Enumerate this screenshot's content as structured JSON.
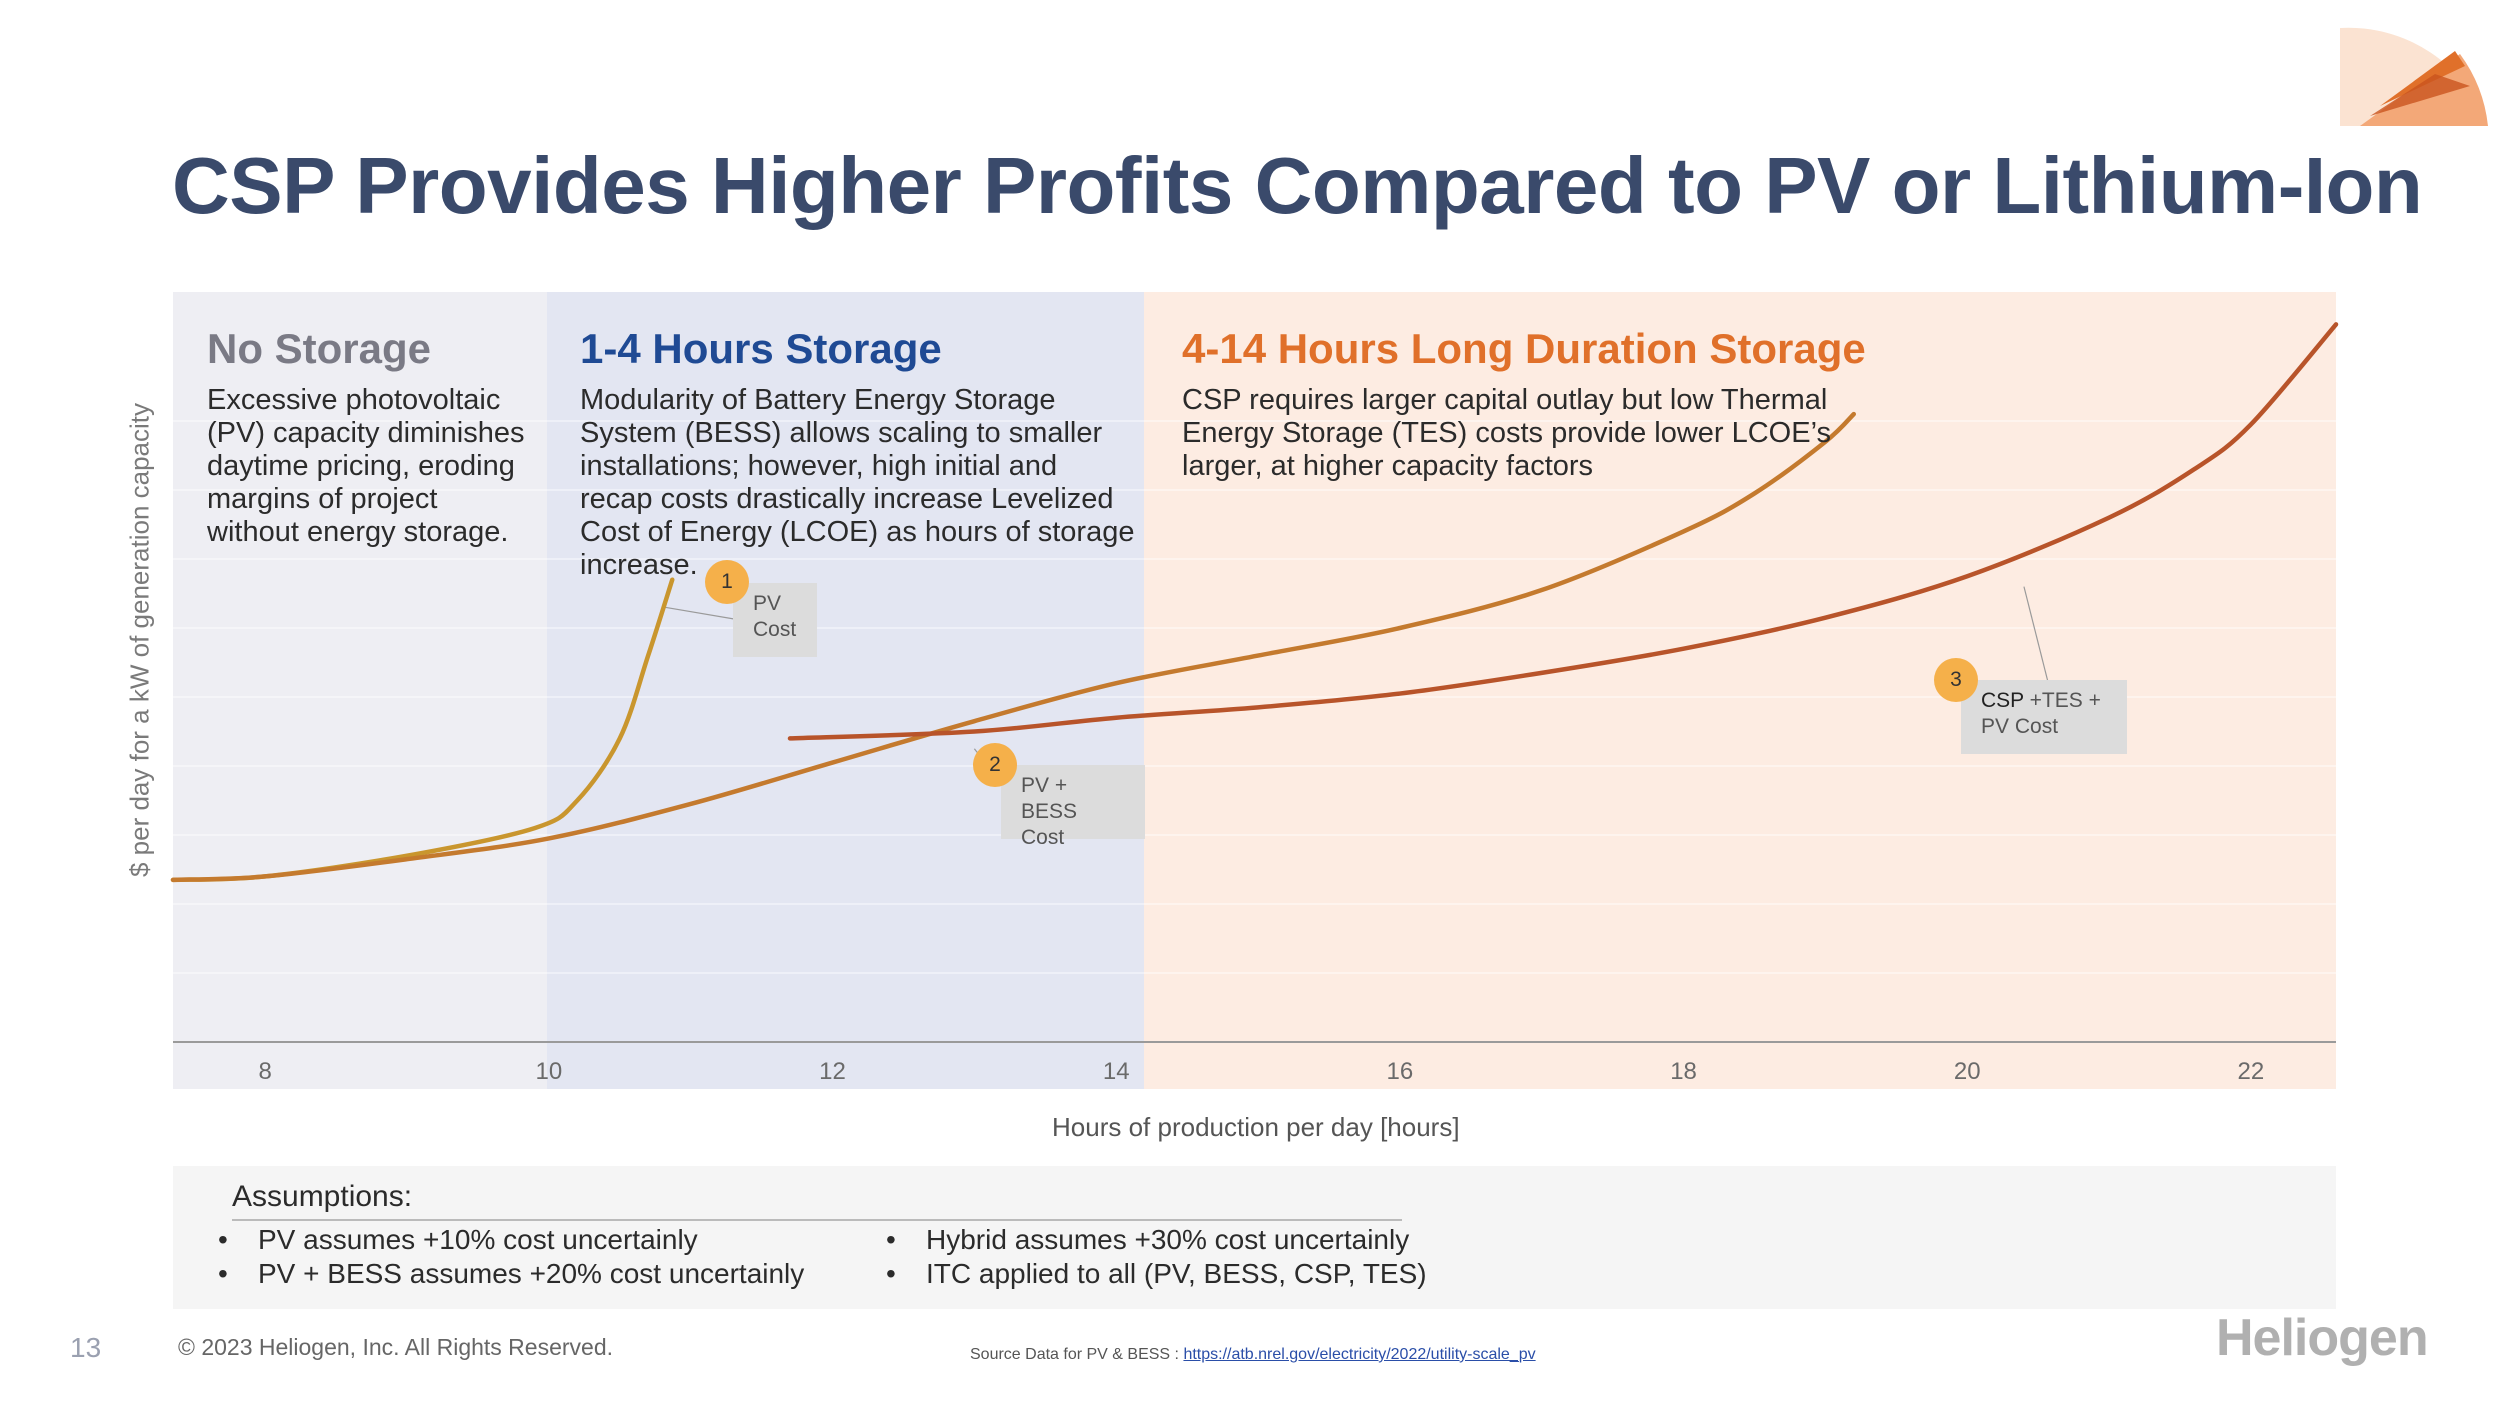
{
  "title": "CSP Provides Higher Profits Compared to PV or Lithium-Ion",
  "zones": [
    {
      "heading": "No Storage",
      "color": "#7a7a85",
      "text": "Excessive photovoltaic (PV) capacity diminishes daytime pricing, eroding margins of project without energy storage."
    },
    {
      "heading": "1-4 Hours Storage",
      "color": "#1f4a94",
      "text": "Modularity of Battery Energy Storage System (BESS) allows scaling to smaller installations; however, high initial and recap costs drastically increase Levelized Cost of Energy (LCOE) as hours of storage increase."
    },
    {
      "heading": "4-14 Hours Long Duration Storage",
      "color": "#e0702a",
      "text": "CSP requires larger capital outlay but low Thermal Energy Storage (TES) costs provide lower LCOE’s larger, at higher capacity factors"
    }
  ],
  "chart_data": {
    "type": "line",
    "title": "",
    "xlabel": "Hours of production per day [hours]",
    "ylabel": "$ per day for a kW of generation capacity",
    "xlim": [
      7.35,
      22.6
    ],
    "ylim": [
      0,
      10
    ],
    "x_ticks": [
      8,
      10,
      12,
      14,
      16,
      18,
      20,
      22
    ],
    "grid": true,
    "series": [
      {
        "name": "PV Cost",
        "color": "#c9962e",
        "x": [
          7.35,
          8.0,
          9.0,
          9.9,
          10.2,
          10.5,
          10.7,
          10.87
        ],
        "y": [
          2.35,
          2.4,
          2.7,
          3.1,
          3.5,
          4.4,
          5.6,
          6.7
        ]
      },
      {
        "name": "PV + BESS Cost",
        "color": "#c47a2e",
        "x": [
          7.35,
          8.0,
          9.0,
          10.0,
          11.0,
          12.0,
          13.0,
          14.0,
          15.0,
          16.0,
          17.0,
          18.0,
          18.5,
          19.0,
          19.2
        ],
        "y": [
          2.35,
          2.4,
          2.65,
          2.95,
          3.45,
          4.05,
          4.65,
          5.2,
          5.6,
          6.0,
          6.55,
          7.4,
          7.95,
          8.7,
          9.1
        ]
      },
      {
        "name": "CSP +TES + PV Cost",
        "color": "#b8542a",
        "x": [
          11.7,
          13.0,
          14.0,
          15.0,
          16.0,
          17.0,
          18.0,
          19.0,
          20.0,
          21.0,
          21.6,
          22.0,
          22.6
        ],
        "y": [
          4.4,
          4.5,
          4.7,
          4.85,
          5.05,
          5.35,
          5.7,
          6.15,
          6.75,
          7.6,
          8.3,
          8.95,
          10.4
        ]
      }
    ],
    "callouts": [
      {
        "num": "1",
        "lines": [
          "PV",
          "Cost"
        ]
      },
      {
        "num": "2",
        "lines": [
          "PV + BESS",
          "Cost"
        ]
      },
      {
        "num": "3",
        "lines_bold": "CSP",
        "lines": [
          " +TES +",
          "PV Cost"
        ]
      }
    ]
  },
  "assumptions": {
    "title": "Assumptions:",
    "bullet": "•",
    "left": [
      "PV assumes +10% cost uncertainly",
      "PV + BESS assumes +20% cost uncertainly"
    ],
    "right": [
      "Hybrid assumes +30% cost uncertainly",
      "ITC applied to all (PV, BESS, CSP, TES)"
    ]
  },
  "footer": {
    "page_number": "13",
    "copyright": "© 2023 Heliogen, Inc. All Rights Reserved.",
    "source_label": "Source Data for PV & BESS : ",
    "source_link": "https://atb.nrel.gov/electricity/2022/utility-scale_pv",
    "logo_text": "Heliogen"
  }
}
